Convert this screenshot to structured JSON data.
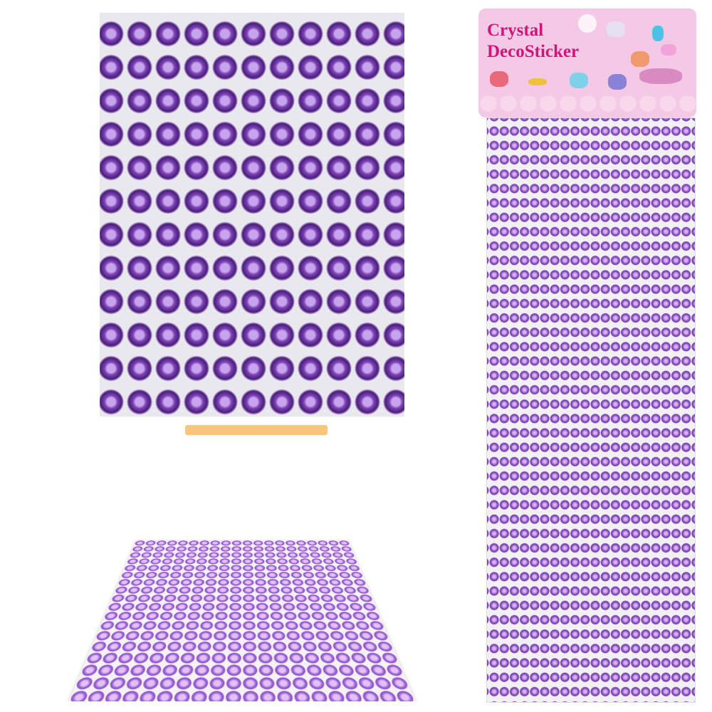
{
  "product": {
    "brand_line1": "Crystal",
    "brand_line2": "DecoSticker"
  },
  "colors": {
    "gem": "#7d45b6",
    "title": "#d0157a",
    "card": "#f3c9e6"
  }
}
